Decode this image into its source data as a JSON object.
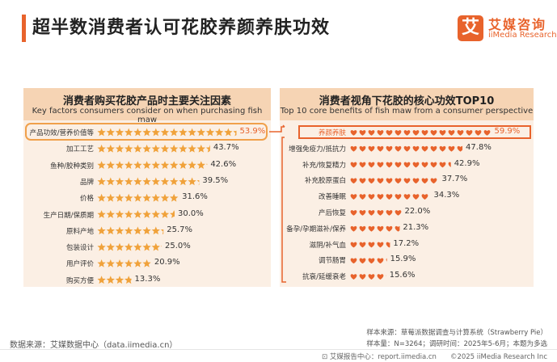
{
  "page": {
    "title": "超半数消费者认可花胶养颜养肤功效",
    "logo_mark": "艾",
    "logo_cn": "艾媒咨询",
    "logo_en": "iiMedia Research",
    "source": "数据来源：艾媒数据中心（data.iimedia.cn）",
    "note_line1": "样本来源：草莓派数据调查与计算系统（Strawberry Pie）",
    "note_line2": "样本量：N=3264；调研时间：2025年5-6月；本题为多选",
    "footer": "⊡ 艾媒报告中心：report.iimedia.cn　　©2025  iiMedia Research  Inc",
    "accent": "#e8632c"
  },
  "chart_data": [
    {
      "type": "bar",
      "marker": "star",
      "title": "消费者购买花胶产品时主要关注因素",
      "subtitle": "Key factors consumers consider on when purchasing fish maw",
      "categories": [
        "产品功效/营养价值等",
        "加工工艺",
        "鱼种/胶种类别",
        "品牌",
        "价格",
        "生产日期/保质期",
        "原料产地",
        "包装设计",
        "用户评价",
        "购买方便"
      ],
      "values": [
        53.9,
        43.7,
        42.6,
        39.5,
        31.6,
        30.0,
        25.7,
        25.0,
        20.9,
        13.3
      ],
      "labels": [
        "53.9%",
        "43.7%",
        "42.6%",
        "39.5%",
        "31.6%",
        "30.0%",
        "25.7%",
        "25.0%",
        "20.9%",
        "13.3%"
      ],
      "highlight": "产品功效/营养价值等",
      "color": "#f0a23b"
    },
    {
      "type": "bar",
      "marker": "heart",
      "title": "消费者视角下花胶的核心功效TOP10",
      "subtitle": "Top 10 core benefits of fish maw from a consumer perspective",
      "categories": [
        "养颜养肤",
        "增强免疫力/抵抗力",
        "补充/恢复精力",
        "补充胶原蛋白",
        "改善睡眠",
        "产后恢复",
        "备孕/孕期滋补/保养",
        "滋阴/补气血",
        "调节肠胃",
        "抗衰/延缓衰老"
      ],
      "values": [
        59.9,
        47.8,
        42.9,
        37.7,
        34.3,
        22.0,
        21.3,
        17.2,
        15.9,
        15.6
      ],
      "labels": [
        "59.9%",
        "47.8%",
        "42.9%",
        "37.7%",
        "34.3%",
        "22.0%",
        "21.3%",
        "17.2%",
        "15.9%",
        "15.6%"
      ],
      "highlight": "养颜养肤",
      "color": "#e8632c"
    }
  ]
}
